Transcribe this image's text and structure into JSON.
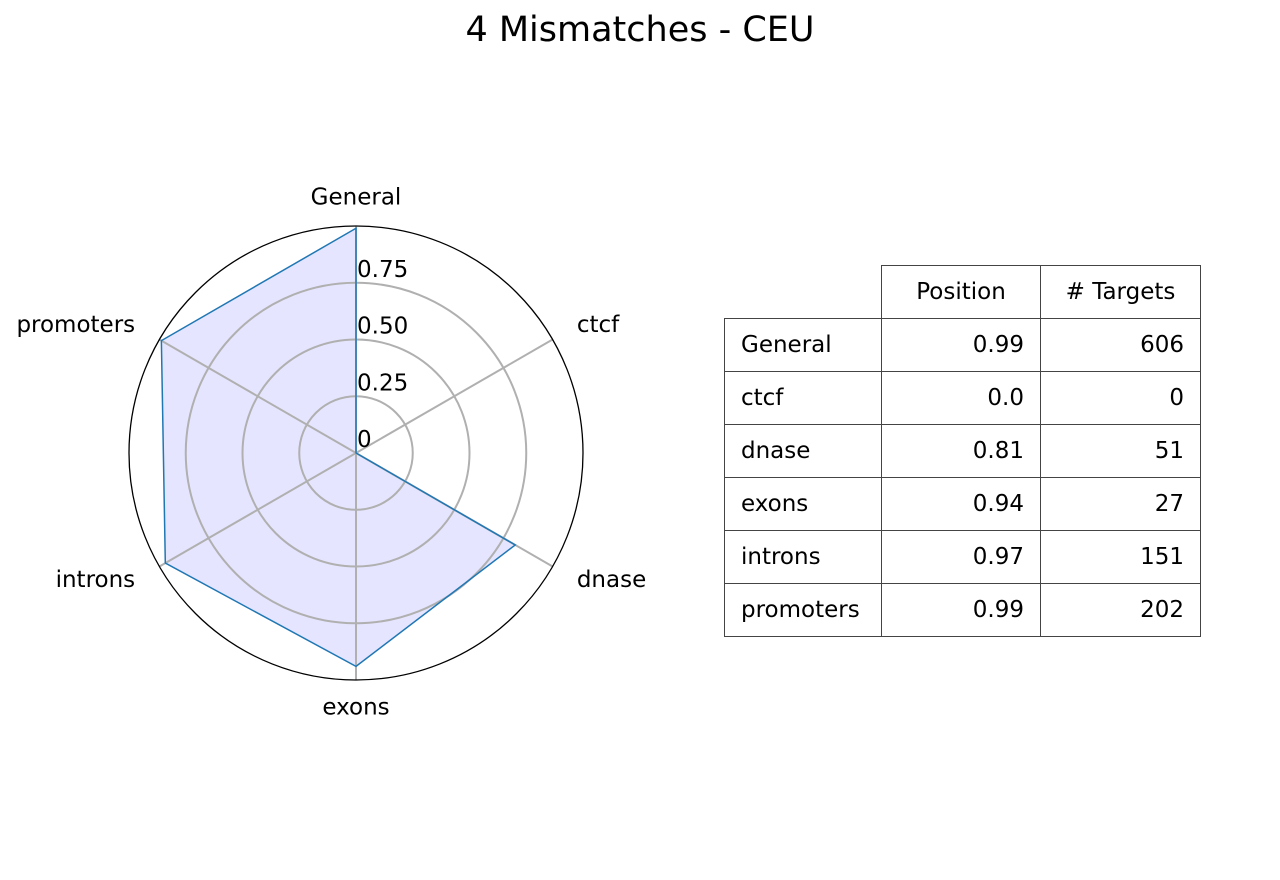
{
  "chart_data": {
    "type": "radar",
    "title": "4 Mismatches - CEU",
    "categories": [
      "General",
      "ctcf",
      "dnase",
      "exons",
      "introns",
      "promoters"
    ],
    "values": [
      0.99,
      0.0,
      0.81,
      0.94,
      0.97,
      0.99
    ],
    "rlim": [
      0,
      1
    ],
    "r_ticks": [
      "0",
      "0.25",
      "0.50",
      "0.75"
    ],
    "r_tick_values": [
      0,
      0.25,
      0.5,
      0.75
    ],
    "line_color": "#1f77b4",
    "fill_color": "#e5e5ff",
    "grid": true
  },
  "table": {
    "headers": [
      "",
      "Position",
      "# Targets"
    ],
    "rows": [
      [
        "General",
        "0.99",
        "606"
      ],
      [
        "ctcf",
        "0.0",
        "0"
      ],
      [
        "dnase",
        "0.81",
        "51"
      ],
      [
        "exons",
        "0.94",
        "27"
      ],
      [
        "introns",
        "0.97",
        "151"
      ],
      [
        "promoters",
        "0.99",
        "202"
      ]
    ]
  }
}
